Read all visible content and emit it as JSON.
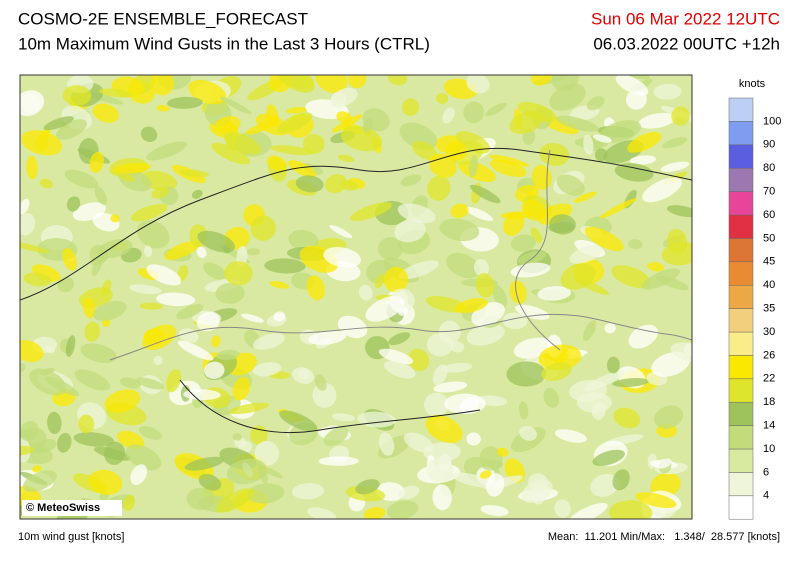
{
  "header": {
    "title": "COSMO-2E ENSEMBLE_FORECAST",
    "subtitle": "10m Maximum Wind Gusts in the Last 3 Hours (CTRL)",
    "valid": "Sun 06 Mar 2022 12UTC",
    "run": "06.03.2022 00UTC +12h"
  },
  "map": {
    "credit": "© MeteoSwiss"
  },
  "legend": {
    "unit": "knots",
    "labels": [
      "4",
      "6",
      "10",
      "14",
      "18",
      "22",
      "26",
      "30",
      "35",
      "40",
      "45",
      "50",
      "60",
      "70",
      "80",
      "90",
      "100"
    ],
    "colors": [
      "#ffffff",
      "#eef5d9",
      "#d8e9a0",
      "#c2dc7c",
      "#9ec35c",
      "#dfe52a",
      "#fbe800",
      "#fbec8a",
      "#f2cf7c",
      "#eca844",
      "#e98b33",
      "#dd7535",
      "#e03042",
      "#e8459a",
      "#9c77b0",
      "#5a5ee0",
      "#7e9df0",
      "#bcd0f5"
    ]
  },
  "footer": {
    "left": "10m wind gust [knots]",
    "right": "Mean:  11.201 Min/Max:   1.348/  28.577 [knots]"
  }
}
